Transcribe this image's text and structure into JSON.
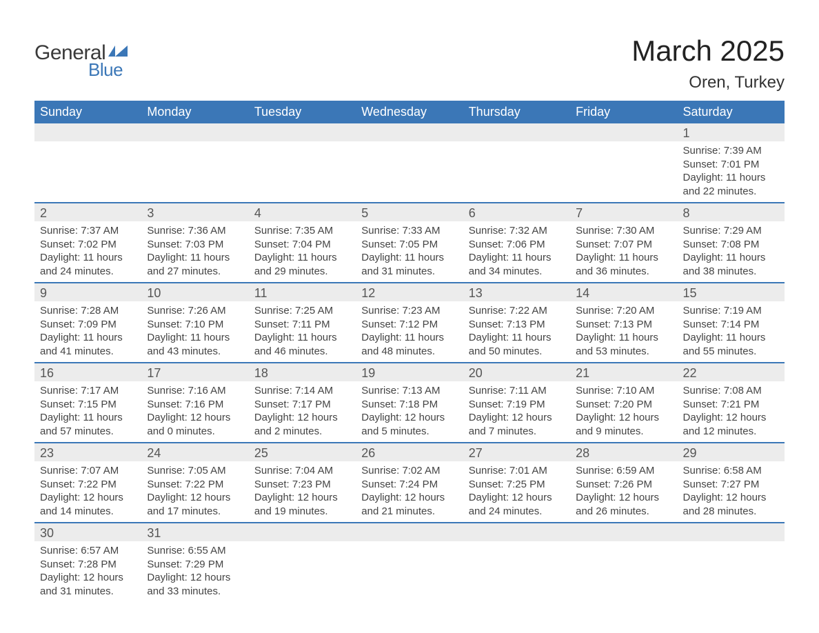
{
  "brand": {
    "name": "General",
    "sub": "Blue",
    "flag_color": "#3b77b7"
  },
  "title": "March 2025",
  "location": "Oren, Turkey",
  "colors": {
    "header_bg": "#3b77b7",
    "header_fg": "#ffffff",
    "daynum_bg": "#ececec",
    "row_border": "#3b77b7",
    "text": "#444444",
    "background": "#ffffff"
  },
  "typography": {
    "title_fontsize": 42,
    "location_fontsize": 24,
    "th_fontsize": 18,
    "daynum_fontsize": 18,
    "body_fontsize": 15
  },
  "weekdays": [
    "Sunday",
    "Monday",
    "Tuesday",
    "Wednesday",
    "Thursday",
    "Friday",
    "Saturday"
  ],
  "weeks": [
    [
      null,
      null,
      null,
      null,
      null,
      null,
      {
        "n": "1",
        "sunrise": "Sunrise: 7:39 AM",
        "sunset": "Sunset: 7:01 PM",
        "daylight": "Daylight: 11 hours and 22 minutes."
      }
    ],
    [
      {
        "n": "2",
        "sunrise": "Sunrise: 7:37 AM",
        "sunset": "Sunset: 7:02 PM",
        "daylight": "Daylight: 11 hours and 24 minutes."
      },
      {
        "n": "3",
        "sunrise": "Sunrise: 7:36 AM",
        "sunset": "Sunset: 7:03 PM",
        "daylight": "Daylight: 11 hours and 27 minutes."
      },
      {
        "n": "4",
        "sunrise": "Sunrise: 7:35 AM",
        "sunset": "Sunset: 7:04 PM",
        "daylight": "Daylight: 11 hours and 29 minutes."
      },
      {
        "n": "5",
        "sunrise": "Sunrise: 7:33 AM",
        "sunset": "Sunset: 7:05 PM",
        "daylight": "Daylight: 11 hours and 31 minutes."
      },
      {
        "n": "6",
        "sunrise": "Sunrise: 7:32 AM",
        "sunset": "Sunset: 7:06 PM",
        "daylight": "Daylight: 11 hours and 34 minutes."
      },
      {
        "n": "7",
        "sunrise": "Sunrise: 7:30 AM",
        "sunset": "Sunset: 7:07 PM",
        "daylight": "Daylight: 11 hours and 36 minutes."
      },
      {
        "n": "8",
        "sunrise": "Sunrise: 7:29 AM",
        "sunset": "Sunset: 7:08 PM",
        "daylight": "Daylight: 11 hours and 38 minutes."
      }
    ],
    [
      {
        "n": "9",
        "sunrise": "Sunrise: 7:28 AM",
        "sunset": "Sunset: 7:09 PM",
        "daylight": "Daylight: 11 hours and 41 minutes."
      },
      {
        "n": "10",
        "sunrise": "Sunrise: 7:26 AM",
        "sunset": "Sunset: 7:10 PM",
        "daylight": "Daylight: 11 hours and 43 minutes."
      },
      {
        "n": "11",
        "sunrise": "Sunrise: 7:25 AM",
        "sunset": "Sunset: 7:11 PM",
        "daylight": "Daylight: 11 hours and 46 minutes."
      },
      {
        "n": "12",
        "sunrise": "Sunrise: 7:23 AM",
        "sunset": "Sunset: 7:12 PM",
        "daylight": "Daylight: 11 hours and 48 minutes."
      },
      {
        "n": "13",
        "sunrise": "Sunrise: 7:22 AM",
        "sunset": "Sunset: 7:13 PM",
        "daylight": "Daylight: 11 hours and 50 minutes."
      },
      {
        "n": "14",
        "sunrise": "Sunrise: 7:20 AM",
        "sunset": "Sunset: 7:13 PM",
        "daylight": "Daylight: 11 hours and 53 minutes."
      },
      {
        "n": "15",
        "sunrise": "Sunrise: 7:19 AM",
        "sunset": "Sunset: 7:14 PM",
        "daylight": "Daylight: 11 hours and 55 minutes."
      }
    ],
    [
      {
        "n": "16",
        "sunrise": "Sunrise: 7:17 AM",
        "sunset": "Sunset: 7:15 PM",
        "daylight": "Daylight: 11 hours and 57 minutes."
      },
      {
        "n": "17",
        "sunrise": "Sunrise: 7:16 AM",
        "sunset": "Sunset: 7:16 PM",
        "daylight": "Daylight: 12 hours and 0 minutes."
      },
      {
        "n": "18",
        "sunrise": "Sunrise: 7:14 AM",
        "sunset": "Sunset: 7:17 PM",
        "daylight": "Daylight: 12 hours and 2 minutes."
      },
      {
        "n": "19",
        "sunrise": "Sunrise: 7:13 AM",
        "sunset": "Sunset: 7:18 PM",
        "daylight": "Daylight: 12 hours and 5 minutes."
      },
      {
        "n": "20",
        "sunrise": "Sunrise: 7:11 AM",
        "sunset": "Sunset: 7:19 PM",
        "daylight": "Daylight: 12 hours and 7 minutes."
      },
      {
        "n": "21",
        "sunrise": "Sunrise: 7:10 AM",
        "sunset": "Sunset: 7:20 PM",
        "daylight": "Daylight: 12 hours and 9 minutes."
      },
      {
        "n": "22",
        "sunrise": "Sunrise: 7:08 AM",
        "sunset": "Sunset: 7:21 PM",
        "daylight": "Daylight: 12 hours and 12 minutes."
      }
    ],
    [
      {
        "n": "23",
        "sunrise": "Sunrise: 7:07 AM",
        "sunset": "Sunset: 7:22 PM",
        "daylight": "Daylight: 12 hours and 14 minutes."
      },
      {
        "n": "24",
        "sunrise": "Sunrise: 7:05 AM",
        "sunset": "Sunset: 7:22 PM",
        "daylight": "Daylight: 12 hours and 17 minutes."
      },
      {
        "n": "25",
        "sunrise": "Sunrise: 7:04 AM",
        "sunset": "Sunset: 7:23 PM",
        "daylight": "Daylight: 12 hours and 19 minutes."
      },
      {
        "n": "26",
        "sunrise": "Sunrise: 7:02 AM",
        "sunset": "Sunset: 7:24 PM",
        "daylight": "Daylight: 12 hours and 21 minutes."
      },
      {
        "n": "27",
        "sunrise": "Sunrise: 7:01 AM",
        "sunset": "Sunset: 7:25 PM",
        "daylight": "Daylight: 12 hours and 24 minutes."
      },
      {
        "n": "28",
        "sunrise": "Sunrise: 6:59 AM",
        "sunset": "Sunset: 7:26 PM",
        "daylight": "Daylight: 12 hours and 26 minutes."
      },
      {
        "n": "29",
        "sunrise": "Sunrise: 6:58 AM",
        "sunset": "Sunset: 7:27 PM",
        "daylight": "Daylight: 12 hours and 28 minutes."
      }
    ],
    [
      {
        "n": "30",
        "sunrise": "Sunrise: 6:57 AM",
        "sunset": "Sunset: 7:28 PM",
        "daylight": "Daylight: 12 hours and 31 minutes."
      },
      {
        "n": "31",
        "sunrise": "Sunrise: 6:55 AM",
        "sunset": "Sunset: 7:29 PM",
        "daylight": "Daylight: 12 hours and 33 minutes."
      },
      null,
      null,
      null,
      null,
      null
    ]
  ]
}
